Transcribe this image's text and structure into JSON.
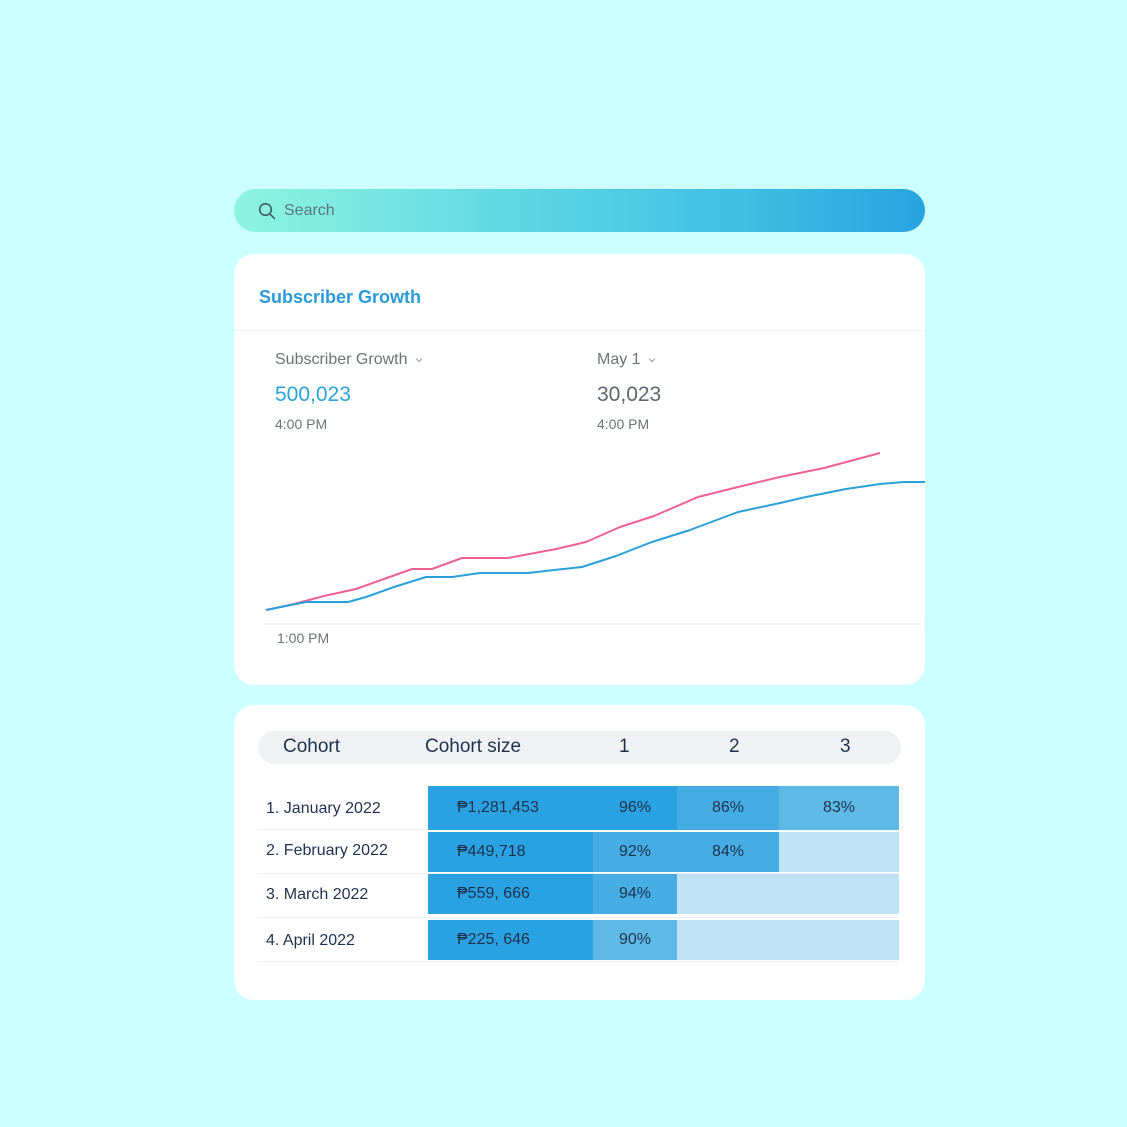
{
  "search": {
    "placeholder": "Search"
  },
  "growth": {
    "title": "Subscriber Growth",
    "left_metric": {
      "label": "Subscriber Growth",
      "value": "500,023",
      "time": "4:00 PM"
    },
    "right_metric": {
      "label": "May 1",
      "value": "30,023",
      "time": "4:00 PM"
    },
    "x_label": "1:00 PM"
  },
  "colors": {
    "background": "#ccffff",
    "accent": "#2a9bd8",
    "pink_line": "#ef6094",
    "blue_line": "#2aa0d9",
    "heat_dark": "#2aa1e0",
    "heat_mid": "#45ade3",
    "heat_light": "#5fb9e6",
    "heat_empty": "#bfe3f4"
  },
  "cohort": {
    "headers": [
      "Cohort",
      "Cohort size",
      "1",
      "2",
      "3"
    ],
    "rows": [
      {
        "label": "1. January  2022",
        "size": "₱1,281,453",
        "values": [
          "96%",
          "86%",
          "83%"
        ]
      },
      {
        "label": "2. February 2022",
        "size": "₱449,718",
        "values": [
          "92%",
          "84%",
          ""
        ]
      },
      {
        "label": "3. March 2022",
        "size": "₱559, 666",
        "values": [
          "94%",
          "",
          ""
        ]
      },
      {
        "label": "4. April 2022",
        "size": "₱225, 646",
        "values": [
          "90%",
          "",
          ""
        ]
      }
    ]
  }
}
